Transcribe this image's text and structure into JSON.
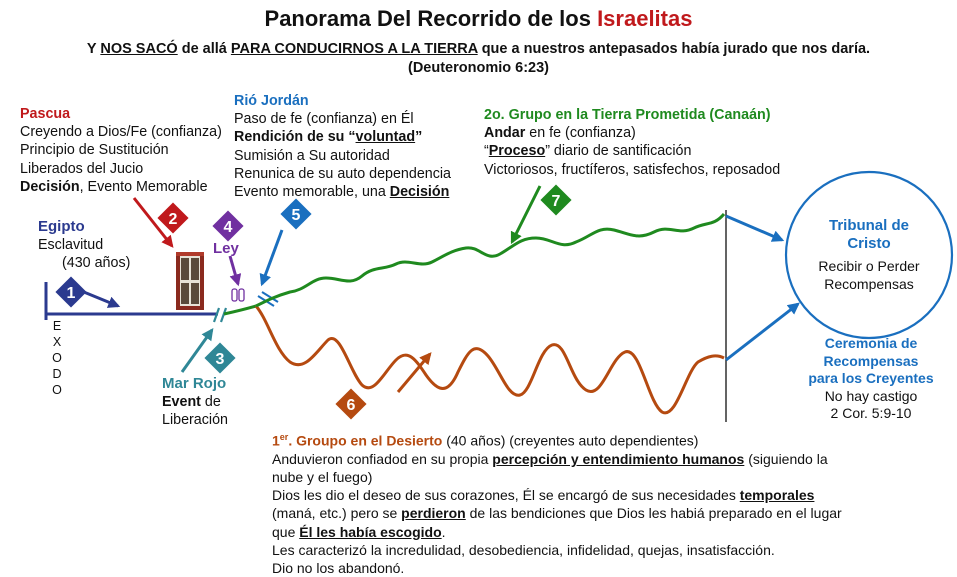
{
  "title": {
    "main": "Panorama Del Recorrido de los ",
    "highlight": "Israelitas"
  },
  "subtitle": {
    "line1_a": "Y ",
    "line1_b": "NOS SACÓ",
    "line1_c": " de allá ",
    "line1_d": "PARA CONDUCIRNOS A LA TIERRA",
    "line1_e": " que a nuestros antepasados había jurado que nos daría.",
    "line2": "(Deuteronomio 6:23)"
  },
  "pascua": {
    "heading": "Pascua",
    "l1": "Creyendo a Dios/Fe (confianza)",
    "l2": "Principio de Sustitución",
    "l3": "Liberados del Jucio",
    "l4_bold": "Decisión",
    "l4_rest": ", Evento Memorable"
  },
  "jordan": {
    "heading": "Rió Jordán",
    "l1": "Paso de fe (confianza) en Él",
    "l2_a": "Rendición de su “",
    "l2_b": "voluntad",
    "l2_c": "”",
    "l3": "Sumisión a Su autoridad",
    "l4": "Renunica de su auto dependencia",
    "l5_a": "Evento memorable, una ",
    "l5_b": "Decisión"
  },
  "group2": {
    "heading": "2o. Grupo en la Tierra Prometida (Canaán)",
    "l1_bold": "Andar",
    "l1_rest": " en fe (confianza)",
    "l2_a": "“",
    "l2_b": "Proceso",
    "l2_c": "” diario de santificación",
    "l3": "Victoriosos, fructíferos, satisfechos, reposadod"
  },
  "egipto": {
    "heading": "Egipto",
    "l1": "Esclavitud",
    "l2": "(430 años)"
  },
  "exodo": [
    "E",
    "X",
    "O",
    "D",
    "O"
  ],
  "ley": {
    "label": "Ley"
  },
  "marrojo": {
    "heading": "Mar Rojo",
    "l1_bold": "Event",
    "l1_rest": " de",
    "l2": "Liberación"
  },
  "tribunal": {
    "l1": "Tribunal de",
    "l2": "Cristo",
    "l3": "Recibir o Perder",
    "l4": "Recompensas"
  },
  "ceremonia": {
    "l1": "Ceremonia de",
    "l2": "Recompensas",
    "l3": "para los Creyentes",
    "l4": "No hay castigo",
    "l5": "2 Cor. 5:9-10"
  },
  "group1": {
    "h1": "1",
    "h1_sup": "er",
    "h1_rest": ". Groupo en el Desierto",
    "h1_tail": "  (40 años) (creyentes auto dependientes)",
    "l1_a": "Anduvieron  confiadod en su propia ",
    "l1_b": "percepción y entendimiento humanos",
    "l1_c": " (siguiendo la",
    "l2": "nube y el fuego)",
    "l3_a": "Dios les dio el deseo de sus corazones, Él se encargó de sus necesidades ",
    "l3_b": "temporales",
    "l4_a": "(maná, etc.) pero se ",
    "l4_b": "perdieron",
    "l4_c": " de las bendiciones que Dios les habiá preparado en el lugar",
    "l5_a": "que ",
    "l5_b": "Él les había escogido",
    "l5_c": ".",
    "l6": "Les caracterizó la incredulidad, desobediencia, infidelidad, quejas, insatisfacción.",
    "l7": "Dio no los abandonó."
  },
  "badges": [
    "1",
    "2",
    "3",
    "4",
    "5",
    "6",
    "7"
  ],
  "colors": {
    "navy": "#2b3a8f",
    "red": "#c0191c",
    "teal": "#2f8796",
    "purple": "#7030a0",
    "blue": "#1a6fbf",
    "brown": "#b54a10",
    "green": "#1f8a1f"
  }
}
